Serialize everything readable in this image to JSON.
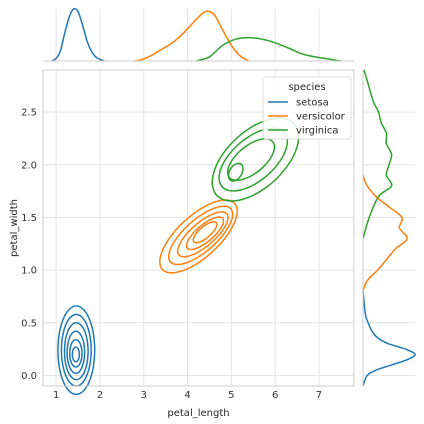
{
  "chart_data": {
    "type": "kde-jointplot",
    "xlabel": "petal_length",
    "ylabel": "petal_width",
    "xlim": [
      0.7,
      7.8
    ],
    "ylim": [
      -0.1,
      2.9
    ],
    "xticks": [
      1,
      2,
      3,
      4,
      5,
      6,
      7
    ],
    "yticks": [
      0.0,
      0.5,
      1.0,
      1.5,
      2.0,
      2.5
    ],
    "grid": true,
    "legend": {
      "title": "species",
      "placement": "top-right",
      "entries": [
        "setosa",
        "versicolor",
        "virginica"
      ]
    },
    "series": [
      {
        "name": "setosa",
        "color": "#1f77b4",
        "x_density": {
          "x": [
            0.9,
            1.0,
            1.1,
            1.2,
            1.3,
            1.4,
            1.5,
            1.6,
            1.7,
            1.8,
            1.9,
            2.0,
            2.1
          ],
          "d": [
            0.0,
            0.05,
            0.2,
            0.55,
            0.85,
            1.0,
            0.95,
            0.7,
            0.4,
            0.2,
            0.08,
            0.03,
            0.0
          ]
        },
        "y_density": {
          "y": [
            -0.1,
            0.0,
            0.05,
            0.1,
            0.15,
            0.2,
            0.25,
            0.3,
            0.35,
            0.4,
            0.45,
            0.5,
            0.55,
            0.6,
            0.7,
            0.8
          ],
          "d": [
            0.0,
            0.08,
            0.25,
            0.55,
            0.85,
            1.0,
            0.82,
            0.5,
            0.3,
            0.2,
            0.14,
            0.1,
            0.06,
            0.04,
            0.02,
            0.0
          ]
        },
        "contours": [
          {
            "cx": 1.46,
            "cy": 0.24,
            "rx": 0.42,
            "ry": 0.42
          },
          {
            "cx": 1.46,
            "cy": 0.24,
            "rx": 0.34,
            "ry": 0.34
          },
          {
            "cx": 1.46,
            "cy": 0.23,
            "rx": 0.27,
            "ry": 0.27
          },
          {
            "cx": 1.45,
            "cy": 0.22,
            "rx": 0.2,
            "ry": 0.2
          },
          {
            "cx": 1.45,
            "cy": 0.21,
            "rx": 0.14,
            "ry": 0.13
          },
          {
            "cx": 1.45,
            "cy": 0.2,
            "rx": 0.08,
            "ry": 0.07
          }
        ]
      },
      {
        "name": "versicolor",
        "color": "#ff7f0e",
        "x_density": {
          "x": [
            2.8,
            3.0,
            3.2,
            3.4,
            3.6,
            3.8,
            4.0,
            4.2,
            4.4,
            4.6,
            4.8,
            5.0,
            5.2,
            5.4
          ],
          "d": [
            0.0,
            0.04,
            0.12,
            0.22,
            0.32,
            0.45,
            0.62,
            0.8,
            0.95,
            0.9,
            0.6,
            0.3,
            0.1,
            0.0
          ]
        },
        "y_density": {
          "y": [
            0.8,
            0.9,
            1.0,
            1.1,
            1.2,
            1.3,
            1.4,
            1.5,
            1.6,
            1.7,
            1.8,
            1.9
          ],
          "d": [
            0.0,
            0.08,
            0.28,
            0.45,
            0.62,
            0.85,
            0.7,
            0.75,
            0.5,
            0.25,
            0.08,
            0.0
          ]
        },
        "contours": [
          {
            "cx": 4.25,
            "cy": 1.32,
            "rx": 1.15,
            "ry": 0.3,
            "rot": 40
          },
          {
            "cx": 4.3,
            "cy": 1.33,
            "rx": 0.95,
            "ry": 0.23,
            "rot": 40
          },
          {
            "cx": 4.35,
            "cy": 1.34,
            "rx": 0.75,
            "ry": 0.17,
            "rot": 40
          },
          {
            "cx": 4.4,
            "cy": 1.35,
            "rx": 0.55,
            "ry": 0.12,
            "rot": 40
          },
          {
            "cx": 4.4,
            "cy": 1.36,
            "rx": 0.35,
            "ry": 0.08,
            "rot": 40
          }
        ]
      },
      {
        "name": "virginica",
        "color": "#2ca02c",
        "x_density": {
          "x": [
            4.2,
            4.5,
            4.8,
            5.1,
            5.4,
            5.7,
            6.0,
            6.3,
            6.6,
            6.9,
            7.2,
            7.5
          ],
          "d": [
            0.0,
            0.08,
            0.3,
            0.42,
            0.45,
            0.42,
            0.35,
            0.25,
            0.14,
            0.08,
            0.04,
            0.0
          ]
        },
        "y_density": {
          "y": [
            1.3,
            1.5,
            1.7,
            1.8,
            1.9,
            2.0,
            2.1,
            2.2,
            2.3,
            2.4,
            2.5,
            2.6,
            2.8,
            2.9
          ],
          "d": [
            0.0,
            0.12,
            0.3,
            0.55,
            0.45,
            0.5,
            0.55,
            0.45,
            0.45,
            0.35,
            0.3,
            0.2,
            0.08,
            0.02
          ]
        },
        "contours": [
          {
            "cx": 5.55,
            "cy": 2.05,
            "rx": 1.2,
            "ry": 0.38,
            "rot": 35
          },
          {
            "cx": 5.5,
            "cy": 2.05,
            "rx": 0.95,
            "ry": 0.28,
            "rot": 35
          },
          {
            "cx": 5.45,
            "cy": 2.05,
            "rx": 0.65,
            "ry": 0.18,
            "rot": 35
          },
          {
            "cx": 5.1,
            "cy": 1.93,
            "rx": 0.2,
            "ry": 0.09,
            "rot": 35
          }
        ]
      }
    ]
  }
}
